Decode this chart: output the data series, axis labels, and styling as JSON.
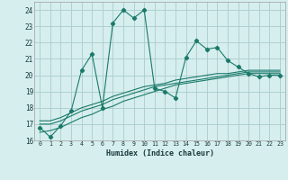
{
  "xlabel": "Humidex (Indice chaleur)",
  "background_color": "#d6eeee",
  "grid_color": "#aacccc",
  "line_color": "#1a7a6a",
  "xlim": [
    -0.5,
    23.5
  ],
  "ylim": [
    16,
    24.5
  ],
  "yticks": [
    16,
    17,
    18,
    19,
    20,
    21,
    22,
    23,
    24
  ],
  "xticks": [
    0,
    1,
    2,
    3,
    4,
    5,
    6,
    7,
    8,
    9,
    10,
    11,
    12,
    13,
    14,
    15,
    16,
    17,
    18,
    19,
    20,
    21,
    22,
    23
  ],
  "series1_x": [
    0,
    1,
    2,
    3,
    4,
    5,
    6,
    7,
    8,
    9,
    10,
    11,
    12,
    13,
    14,
    15,
    16,
    17,
    18,
    19,
    20,
    21,
    22,
    23
  ],
  "series1_y": [
    16.8,
    16.2,
    16.9,
    17.8,
    20.3,
    21.3,
    18.0,
    23.2,
    24.0,
    23.5,
    24.0,
    19.2,
    19.0,
    18.6,
    21.1,
    22.1,
    21.6,
    21.7,
    20.9,
    20.5,
    20.1,
    19.9,
    20.0,
    20.0
  ],
  "series2_x": [
    0,
    1,
    2,
    3,
    4,
    5,
    6,
    7,
    8,
    9,
    10,
    11,
    12,
    13,
    14,
    15,
    16,
    17,
    18,
    19,
    20,
    21,
    22,
    23
  ],
  "series2_y": [
    16.5,
    16.6,
    16.8,
    17.1,
    17.4,
    17.6,
    17.9,
    18.1,
    18.4,
    18.6,
    18.8,
    19.0,
    19.2,
    19.4,
    19.5,
    19.6,
    19.7,
    19.8,
    19.9,
    20.0,
    20.1,
    20.1,
    20.1,
    20.1
  ],
  "series3_x": [
    0,
    1,
    2,
    3,
    4,
    5,
    6,
    7,
    8,
    9,
    10,
    11,
    12,
    13,
    14,
    15,
    16,
    17,
    18,
    19,
    20,
    21,
    22,
    23
  ],
  "series3_y": [
    17.0,
    17.0,
    17.2,
    17.5,
    17.8,
    18.0,
    18.2,
    18.5,
    18.7,
    18.9,
    19.1,
    19.3,
    19.4,
    19.5,
    19.6,
    19.7,
    19.8,
    19.9,
    20.0,
    20.1,
    20.2,
    20.2,
    20.2,
    20.2
  ],
  "series4_x": [
    0,
    1,
    2,
    3,
    4,
    5,
    6,
    7,
    8,
    9,
    10,
    11,
    12,
    13,
    14,
    15,
    16,
    17,
    18,
    19,
    20,
    21,
    22,
    23
  ],
  "series4_y": [
    17.2,
    17.2,
    17.4,
    17.7,
    18.0,
    18.2,
    18.4,
    18.7,
    18.9,
    19.1,
    19.3,
    19.4,
    19.5,
    19.7,
    19.8,
    19.9,
    20.0,
    20.1,
    20.1,
    20.2,
    20.3,
    20.3,
    20.3,
    20.3
  ]
}
